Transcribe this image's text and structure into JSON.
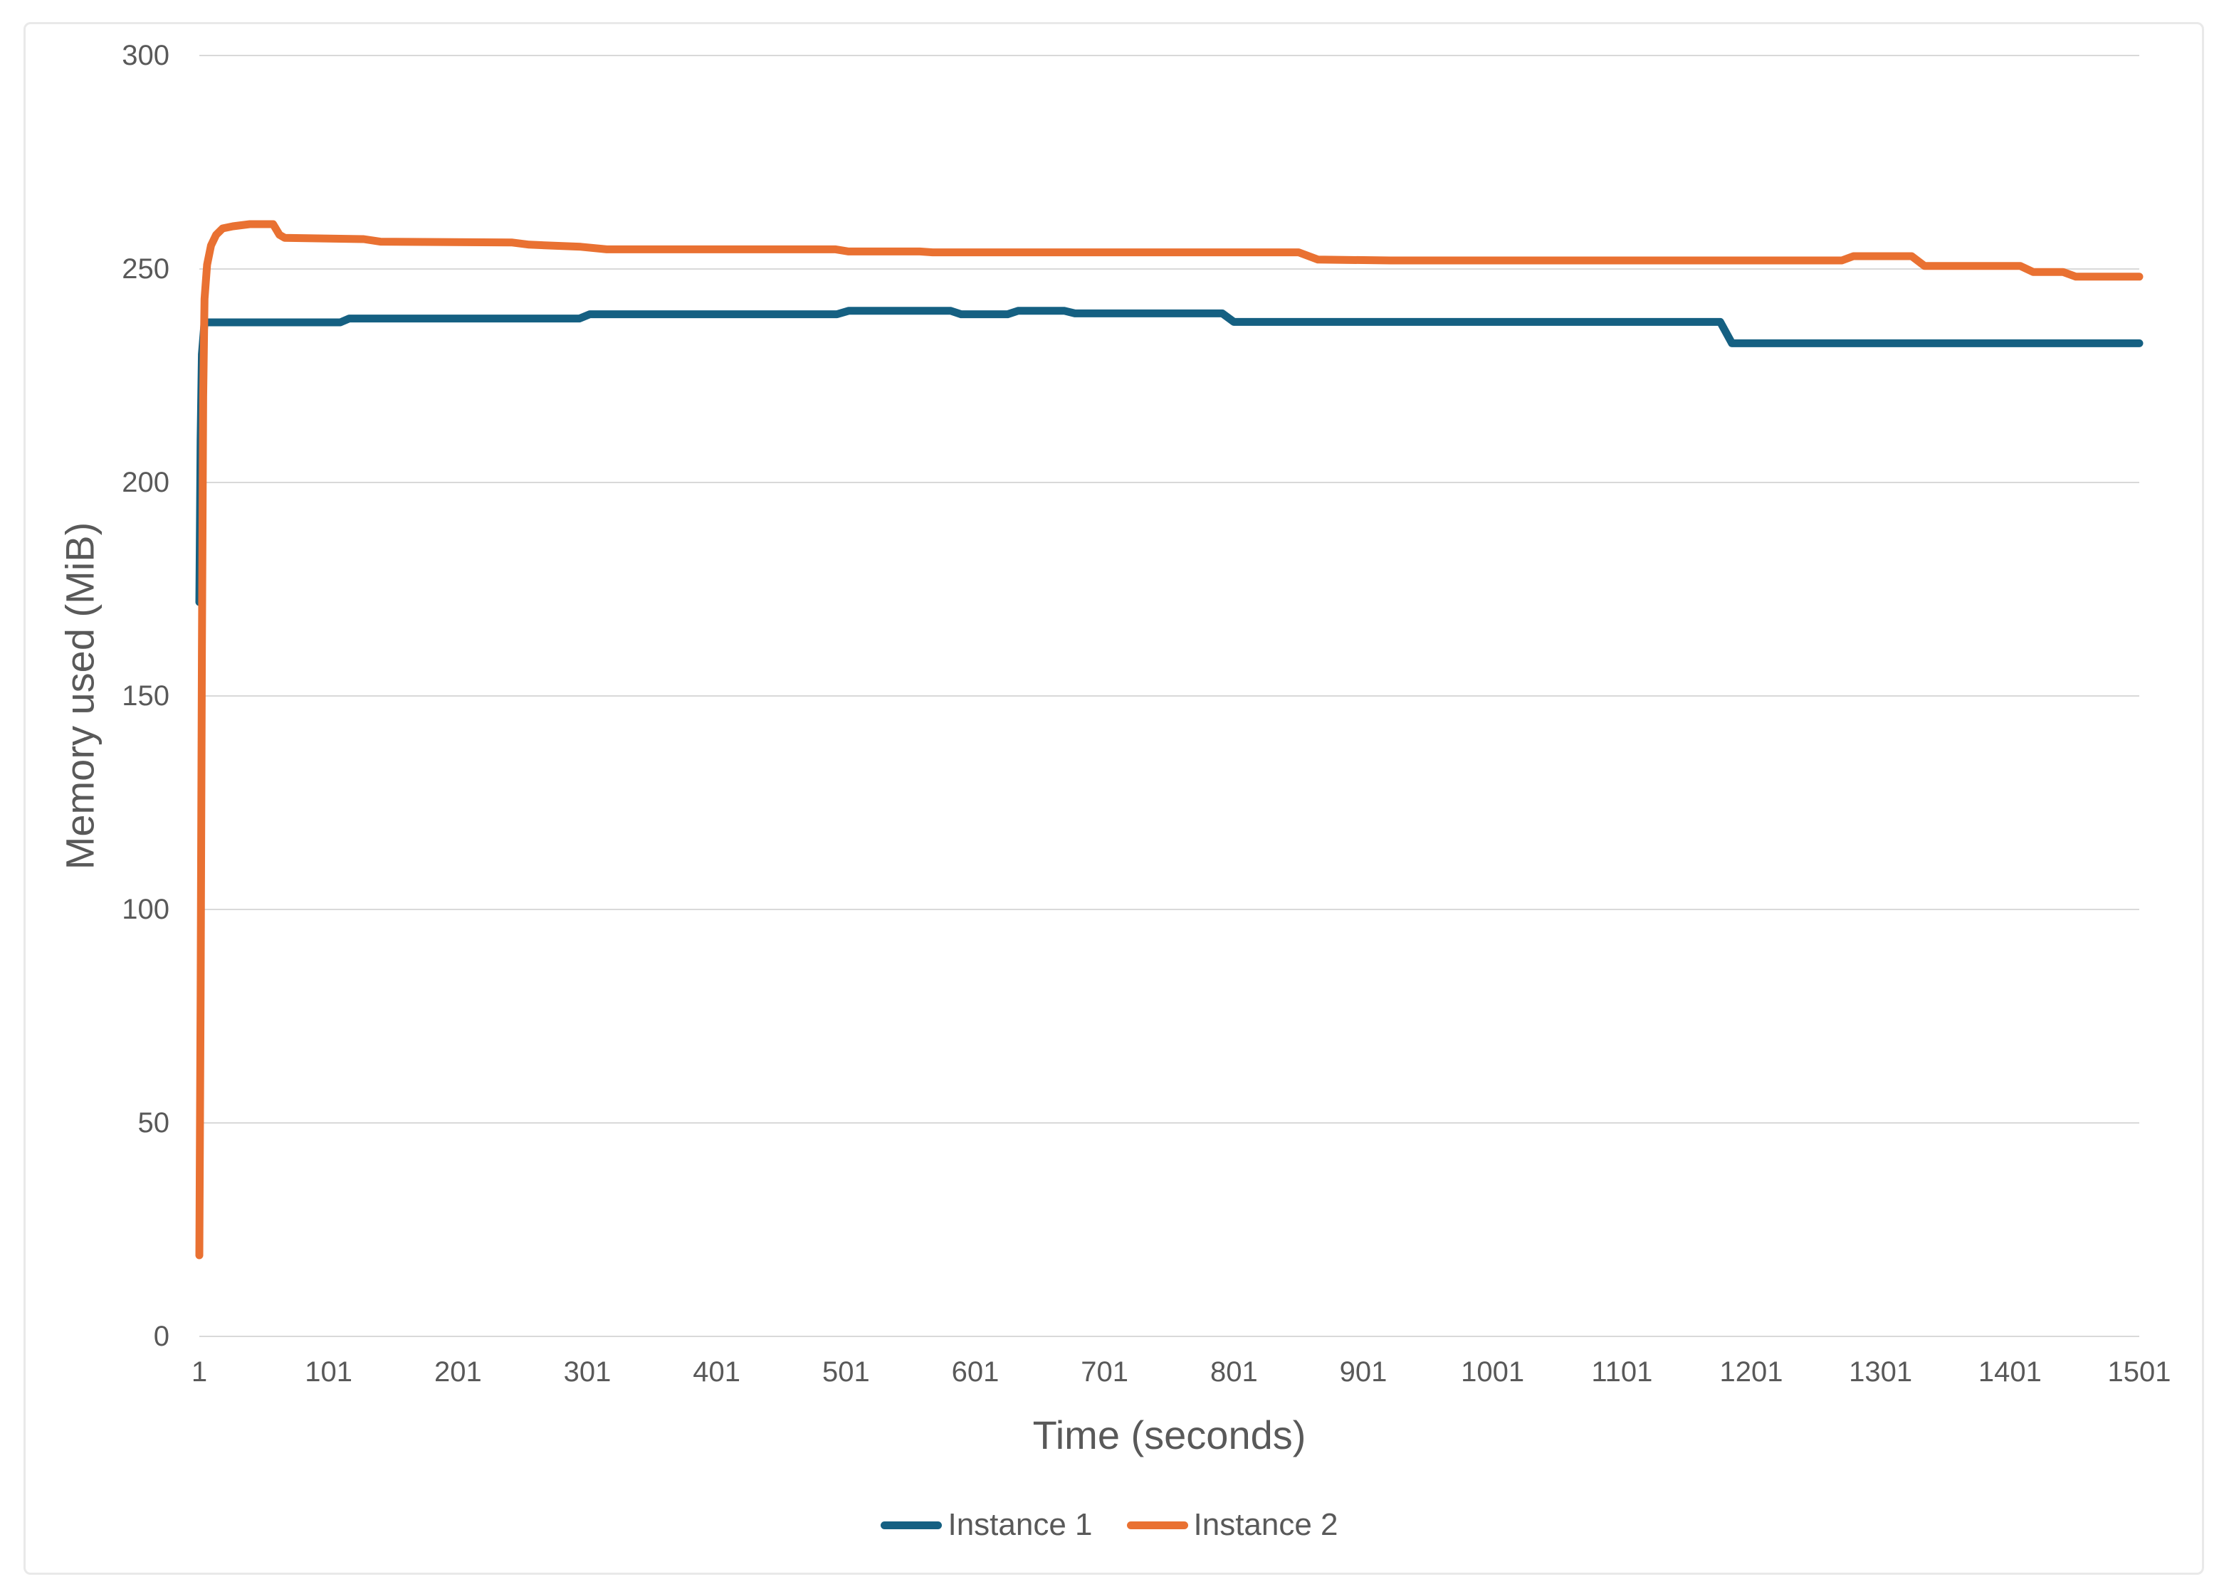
{
  "chart_data": {
    "type": "line",
    "title": "",
    "xlabel": "Time (seconds)",
    "ylabel": "Memory used (MiB)",
    "xlim": [
      1,
      1501
    ],
    "ylim": [
      0,
      300
    ],
    "x_ticks": [
      1,
      101,
      201,
      301,
      401,
      501,
      601,
      701,
      801,
      901,
      1001,
      1101,
      1201,
      1301,
      1401,
      1501
    ],
    "y_ticks": [
      0,
      50,
      100,
      150,
      200,
      250,
      300
    ],
    "grid": "horizontal",
    "legend_position": "bottom-center",
    "colors": {
      "grid": "#d9d9d9",
      "axis_text": "#595959",
      "background": "#ffffff",
      "frame_border": "#e9e9e9"
    },
    "series": [
      {
        "name": "Instance 1",
        "color": "#156082",
        "points": [
          [
            1,
            172
          ],
          [
            2,
            210
          ],
          [
            3,
            230
          ],
          [
            5,
            237.5
          ],
          [
            110,
            237.5
          ],
          [
            117,
            238.4
          ],
          [
            295,
            238.4
          ],
          [
            303,
            239.4
          ],
          [
            494,
            239.4
          ],
          [
            503,
            240.2
          ],
          [
            582,
            240.2
          ],
          [
            590,
            239.4
          ],
          [
            626,
            239.4
          ],
          [
            634,
            240.2
          ],
          [
            670,
            240.2
          ],
          [
            678,
            239.6
          ],
          [
            792,
            239.6
          ],
          [
            801,
            237.6
          ],
          [
            1177,
            237.6
          ],
          [
            1186,
            232.6
          ],
          [
            1501,
            232.6
          ]
        ]
      },
      {
        "name": "Instance 2",
        "color": "#E97132",
        "points": [
          [
            1,
            19
          ],
          [
            2,
            80
          ],
          [
            3,
            160
          ],
          [
            4,
            220
          ],
          [
            5,
            243
          ],
          [
            7,
            251
          ],
          [
            10,
            255.5
          ],
          [
            14,
            258
          ],
          [
            19,
            259.5
          ],
          [
            27,
            260
          ],
          [
            40,
            260.5
          ],
          [
            58,
            260.5
          ],
          [
            63,
            258
          ],
          [
            67,
            257.3
          ],
          [
            128,
            257
          ],
          [
            141,
            256.4
          ],
          [
            243,
            256.2
          ],
          [
            256,
            255.7
          ],
          [
            296,
            255.2
          ],
          [
            316,
            254.6
          ],
          [
            493,
            254.6
          ],
          [
            503,
            254.1
          ],
          [
            558,
            254.1
          ],
          [
            568,
            253.9
          ],
          [
            851,
            253.9
          ],
          [
            866,
            252.2
          ],
          [
            922,
            252
          ],
          [
            1271,
            252
          ],
          [
            1280,
            253
          ],
          [
            1325,
            253
          ],
          [
            1335,
            250.7
          ],
          [
            1409,
            250.7
          ],
          [
            1419,
            249.3
          ],
          [
            1442,
            249.3
          ],
          [
            1452,
            248.2
          ],
          [
            1501,
            248.2
          ]
        ]
      }
    ]
  }
}
